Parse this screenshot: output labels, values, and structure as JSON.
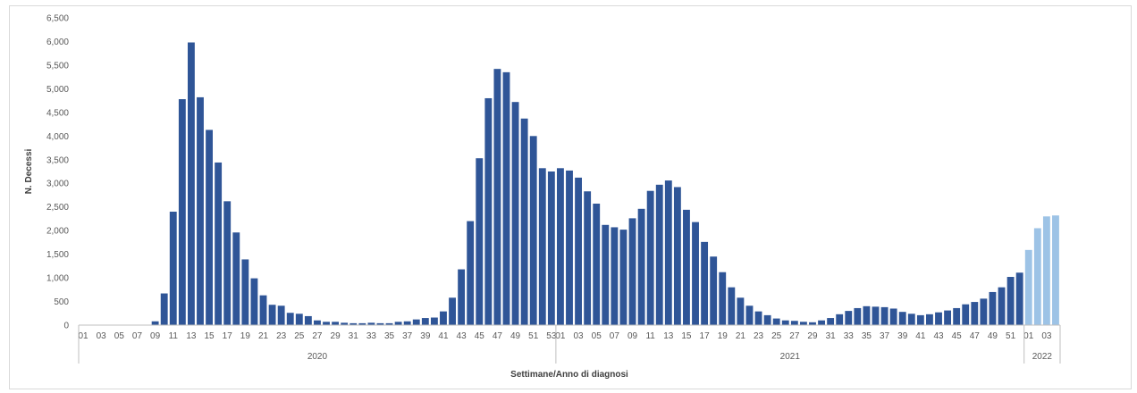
{
  "chart_data": {
    "type": "bar",
    "xlabel": "Settimane/Anno di diagnosi",
    "ylabel": "N. Decessi",
    "ylim": [
      0,
      6500
    ],
    "yticks": [
      0,
      500,
      1000,
      1500,
      2000,
      2500,
      3000,
      3500,
      4000,
      4500,
      5000,
      5500,
      6000,
      6500
    ],
    "ytick_labels": [
      "0",
      "500",
      "1,000",
      "1,500",
      "2,000",
      "2,500",
      "3,000",
      "3,500",
      "4,000",
      "4,500",
      "5,000",
      "5,500",
      "6,000",
      "6,500"
    ],
    "grid": false,
    "legend": "none",
    "colors": {
      "bar": "#2f5597",
      "bar_recent": "#9dc3e6",
      "axis": "#bfbfbf",
      "text": "#595959"
    },
    "groups": [
      {
        "label": "2020",
        "weeks": [
          "01",
          "02",
          "03",
          "04",
          "05",
          "06",
          "07",
          "08",
          "09",
          "10",
          "11",
          "12",
          "13",
          "14",
          "15",
          "16",
          "17",
          "18",
          "19",
          "20",
          "21",
          "22",
          "23",
          "24",
          "25",
          "26",
          "27",
          "28",
          "29",
          "30",
          "31",
          "32",
          "33",
          "34",
          "35",
          "36",
          "37",
          "38",
          "39",
          "40",
          "41",
          "42",
          "43",
          "44",
          "45",
          "46",
          "47",
          "48",
          "49",
          "50",
          "51",
          "52",
          "53"
        ],
        "values": [
          0,
          0,
          0,
          0,
          0,
          0,
          0,
          5,
          80,
          670,
          2400,
          4780,
          5980,
          4820,
          4130,
          3440,
          2620,
          1960,
          1390,
          990,
          630,
          430,
          410,
          260,
          240,
          190,
          100,
          70,
          70,
          50,
          40,
          40,
          50,
          40,
          40,
          70,
          80,
          120,
          150,
          160,
          290,
          580,
          1180,
          2200,
          3530,
          4800,
          5420,
          5350,
          4720,
          4370,
          4000,
          3320,
          3250
        ],
        "recent": []
      },
      {
        "label": "2021",
        "weeks": [
          "01",
          "02",
          "03",
          "04",
          "05",
          "06",
          "07",
          "08",
          "09",
          "10",
          "11",
          "12",
          "13",
          "14",
          "15",
          "16",
          "17",
          "18",
          "19",
          "20",
          "21",
          "22",
          "23",
          "24",
          "25",
          "26",
          "27",
          "28",
          "29",
          "30",
          "31",
          "32",
          "33",
          "34",
          "35",
          "36",
          "37",
          "38",
          "39",
          "40",
          "41",
          "42",
          "43",
          "44",
          "45",
          "46",
          "47",
          "48",
          "49",
          "50",
          "51",
          "52"
        ],
        "values": [
          3320,
          3270,
          3120,
          2830,
          2570,
          2120,
          2070,
          2020,
          2260,
          2460,
          2840,
          2970,
          3060,
          2920,
          2440,
          2180,
          1760,
          1450,
          1120,
          800,
          580,
          410,
          290,
          210,
          140,
          100,
          90,
          70,
          60,
          100,
          150,
          230,
          300,
          360,
          400,
          390,
          380,
          350,
          280,
          240,
          210,
          230,
          270,
          310,
          360,
          440,
          490,
          560,
          700,
          800,
          1020,
          1110
        ],
        "recent": []
      },
      {
        "label": "2022",
        "weeks": [
          "01",
          "02",
          "03",
          "04"
        ],
        "values": [
          1590,
          2050,
          2300,
          2320
        ],
        "recent": [
          true,
          true,
          true,
          true
        ]
      }
    ]
  }
}
